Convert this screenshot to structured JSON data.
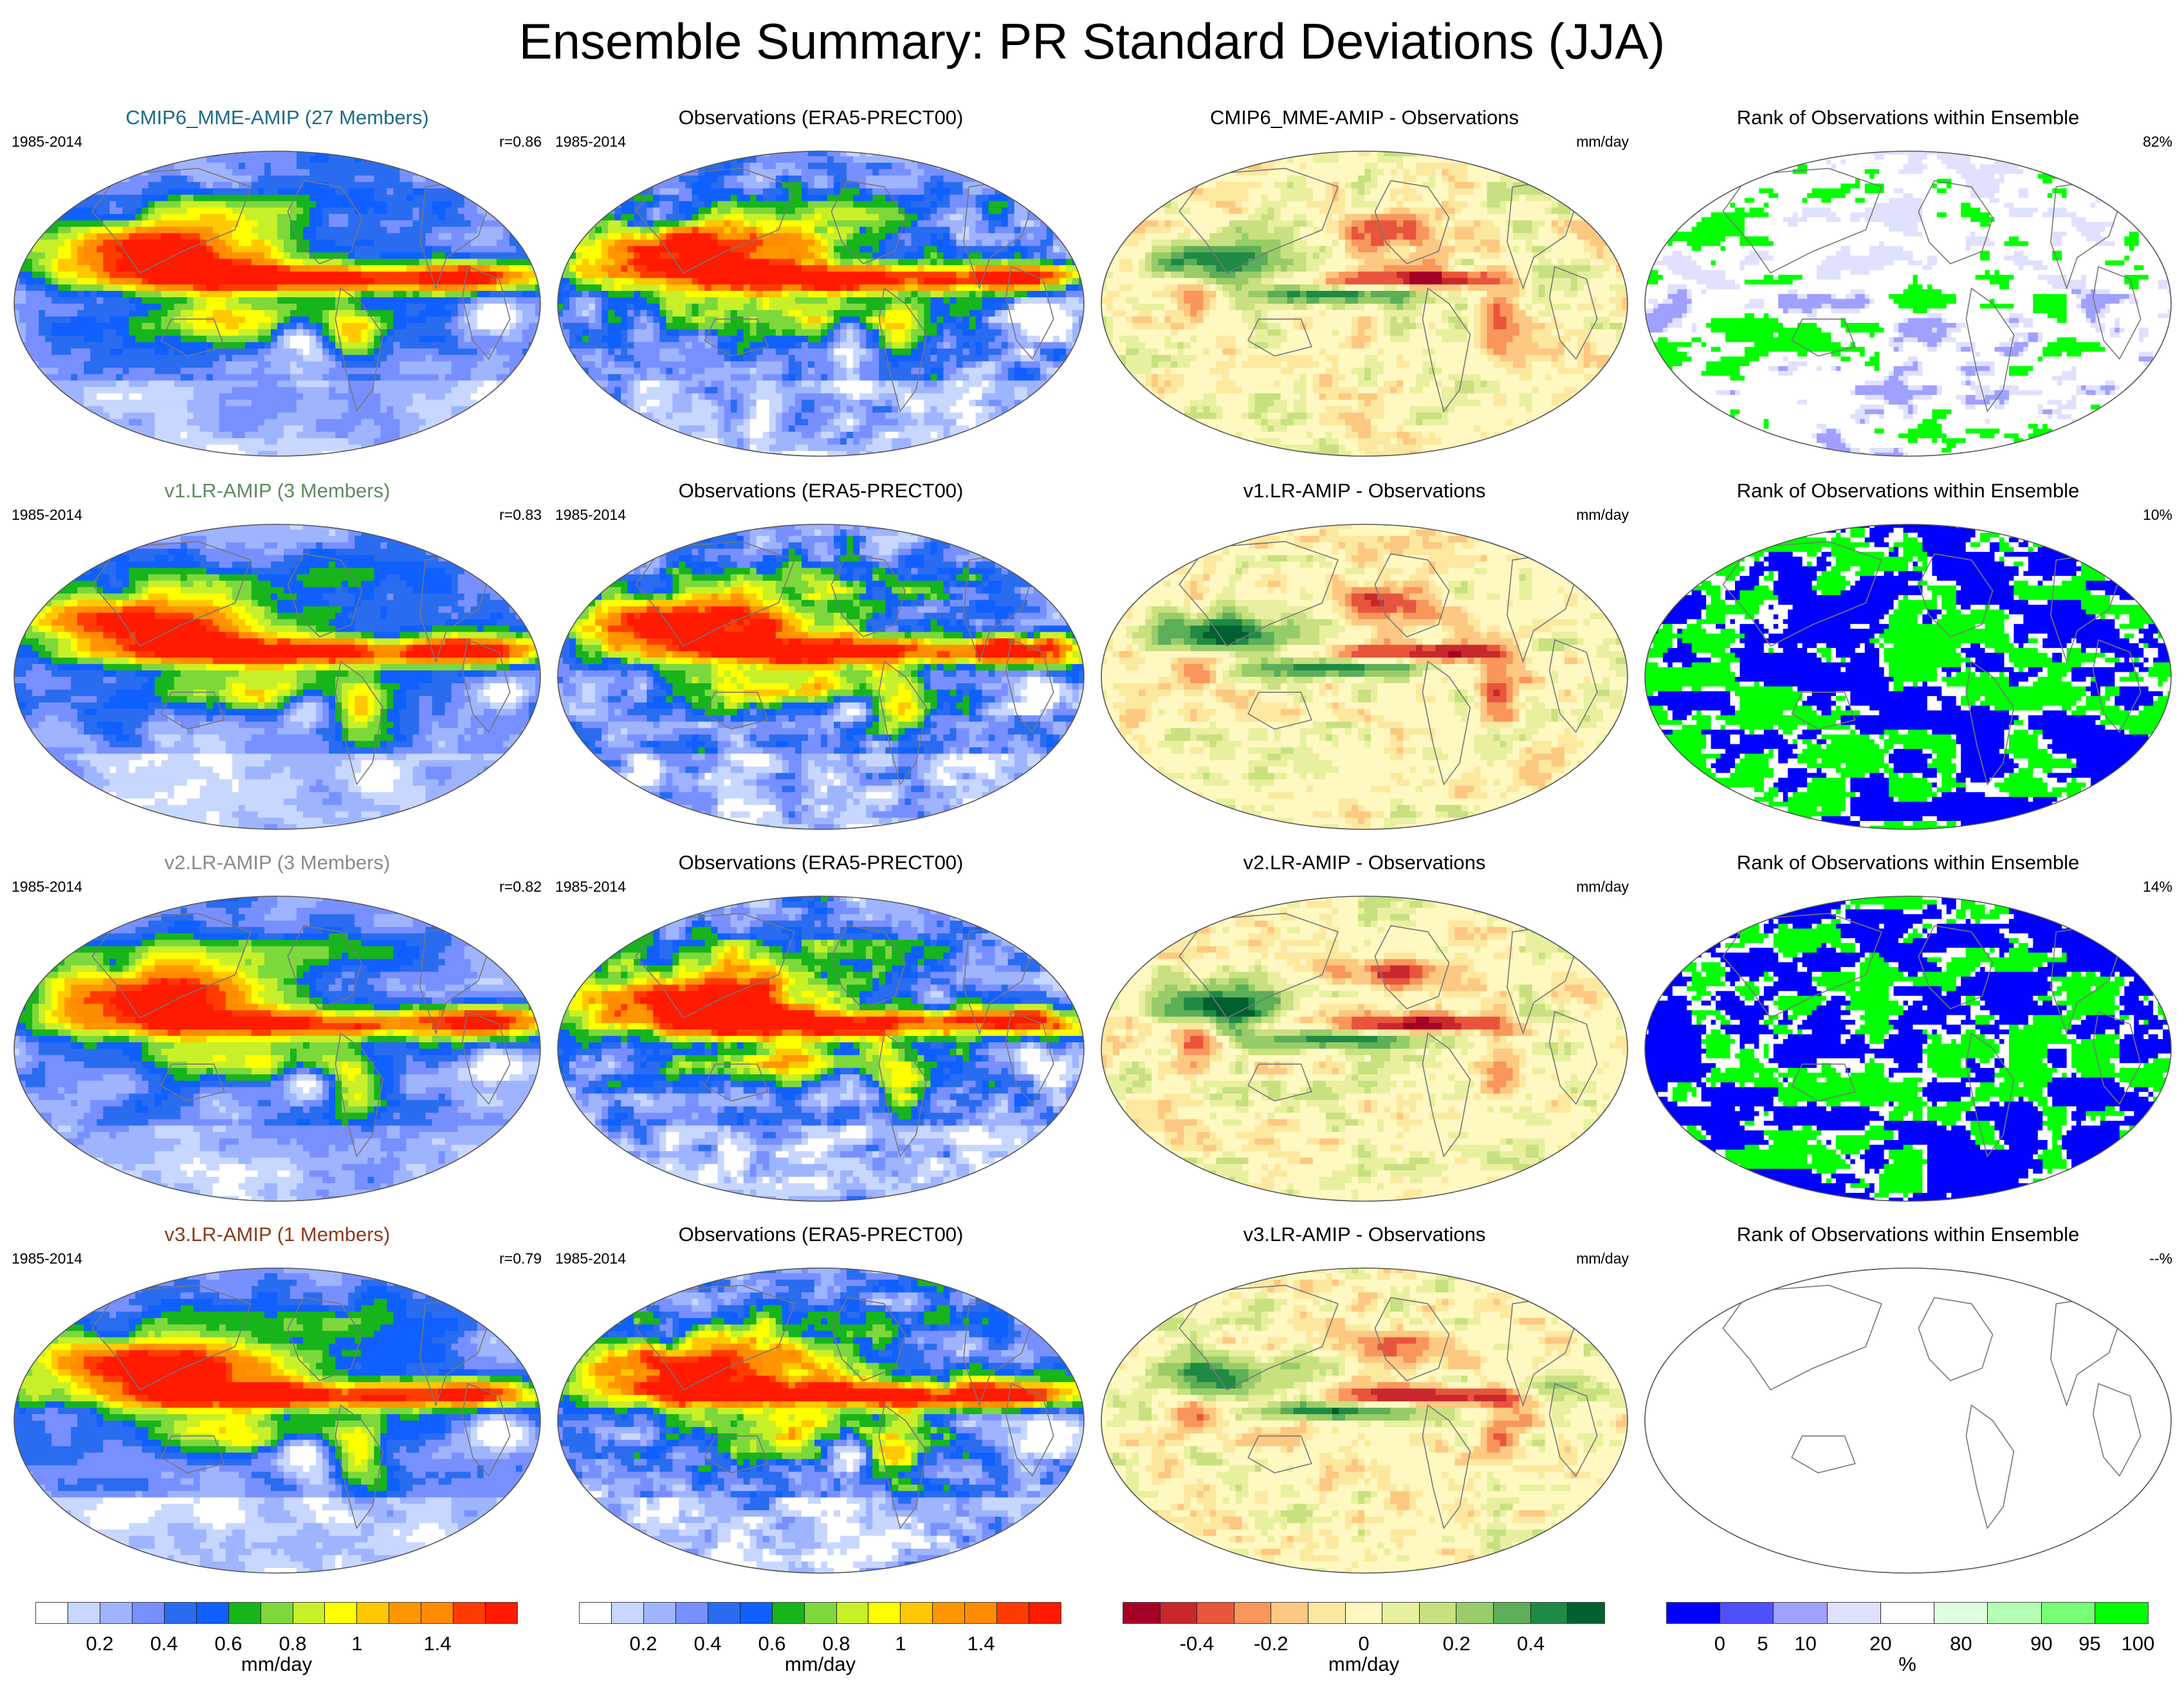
{
  "title": "Ensemble Summary: PR Standard Deviations (JJA)",
  "colors": {
    "cmip6": "#1a6b86",
    "v1": "#5e8b5e",
    "v2": "#8a8a8a",
    "v3": "#8b3a1a"
  },
  "panels": [
    {
      "col": 0,
      "row": 0,
      "kind": "model",
      "title": "CMIP6_MME-AMIP (27 Members)",
      "title_color": "#1a6b86",
      "left": "1985-2014",
      "right": "r=0.86"
    },
    {
      "col": 1,
      "row": 0,
      "kind": "obs",
      "title": "Observations (ERA5-PRECT00)",
      "left": "1985-2014",
      "right": ""
    },
    {
      "col": 2,
      "row": 0,
      "kind": "diff",
      "title": "CMIP6_MME-AMIP - Observations",
      "left": "",
      "right": "mm/day"
    },
    {
      "col": 3,
      "row": 0,
      "kind": "rank",
      "title": "Rank of Observations within Ensemble",
      "left": "",
      "right": "82%"
    },
    {
      "col": 0,
      "row": 1,
      "kind": "model",
      "title": "v1.LR-AMIP (3 Members)",
      "title_color": "#5e8b5e",
      "left": "1985-2014",
      "right": "r=0.83"
    },
    {
      "col": 1,
      "row": 1,
      "kind": "obs",
      "title": "Observations (ERA5-PRECT00)",
      "left": "1985-2014",
      "right": ""
    },
    {
      "col": 2,
      "row": 1,
      "kind": "diff",
      "title": "v1.LR-AMIP - Observations",
      "left": "",
      "right": "mm/day"
    },
    {
      "col": 3,
      "row": 1,
      "kind": "rank",
      "title": "Rank of Observations within Ensemble",
      "left": "",
      "right": "10%"
    },
    {
      "col": 0,
      "row": 2,
      "kind": "model",
      "title": "v2.LR-AMIP (3 Members)",
      "title_color": "#8a8a8a",
      "left": "1985-2014",
      "right": "r=0.82"
    },
    {
      "col": 1,
      "row": 2,
      "kind": "obs",
      "title": "Observations (ERA5-PRECT00)",
      "left": "1985-2014",
      "right": ""
    },
    {
      "col": 2,
      "row": 2,
      "kind": "diff",
      "title": "v2.LR-AMIP - Observations",
      "left": "",
      "right": "mm/day"
    },
    {
      "col": 3,
      "row": 2,
      "kind": "rank",
      "title": "Rank of Observations within Ensemble",
      "left": "",
      "right": "14%"
    },
    {
      "col": 0,
      "row": 3,
      "kind": "model",
      "title": "v3.LR-AMIP (1 Members)",
      "title_color": "#8b3a1a",
      "left": "1985-2014",
      "right": "r=0.79"
    },
    {
      "col": 1,
      "row": 3,
      "kind": "obs",
      "title": "Observations (ERA5-PRECT00)",
      "left": "1985-2014",
      "right": ""
    },
    {
      "col": 2,
      "row": 3,
      "kind": "diff",
      "title": "v3.LR-AMIP - Observations",
      "left": "",
      "right": "mm/day"
    },
    {
      "col": 3,
      "row": 3,
      "kind": "rank",
      "title": "Rank of Observations within Ensemble",
      "left": "",
      "right": "--%"
    }
  ],
  "colorbars": [
    {
      "name": "model-colorbar",
      "colors": [
        "#ffffff",
        "#c8d7ff",
        "#9fb4ff",
        "#7890ff",
        "#2a6cf0",
        "#1060ff",
        "#18b41c",
        "#7dd83c",
        "#c8f028",
        "#ffff00",
        "#ffc800",
        "#ff9600",
        "#ff8c00",
        "#ff3c00",
        "#ff1a00"
      ],
      "ticks": [
        {
          "label": "0.2",
          "at": 2
        },
        {
          "label": "0.4",
          "at": 4
        },
        {
          "label": "0.6",
          "at": 6
        },
        {
          "label": "0.8",
          "at": 8
        },
        {
          "label": "1",
          "at": 10
        },
        {
          "label": "1.4",
          "at": 12.5
        }
      ],
      "unit": "mm/day"
    },
    {
      "name": "obs-colorbar",
      "colors": [
        "#ffffff",
        "#c8d7ff",
        "#9fb4ff",
        "#7890ff",
        "#2a6cf0",
        "#1060ff",
        "#18b41c",
        "#7dd83c",
        "#c8f028",
        "#ffff00",
        "#ffc800",
        "#ff9600",
        "#ff8c00",
        "#ff3c00",
        "#ff1a00"
      ],
      "ticks": [
        {
          "label": "0.2",
          "at": 2
        },
        {
          "label": "0.4",
          "at": 4
        },
        {
          "label": "0.6",
          "at": 6
        },
        {
          "label": "0.8",
          "at": 8
        },
        {
          "label": "1",
          "at": 10
        },
        {
          "label": "1.4",
          "at": 12.5
        }
      ],
      "unit": "mm/day"
    },
    {
      "name": "diff-colorbar",
      "colors": [
        "#a50026",
        "#c8282c",
        "#e8553c",
        "#f8965c",
        "#fcc882",
        "#fde8a0",
        "#fff8c0",
        "#e8f0a0",
        "#c8e080",
        "#98cc68",
        "#5cae58",
        "#1e8a44",
        "#006030"
      ],
      "ticks": [
        {
          "label": "-0.4",
          "at": 2
        },
        {
          "label": "-0.2",
          "at": 4
        },
        {
          "label": "0",
          "at": 6.5
        },
        {
          "label": "0.2",
          "at": 9
        },
        {
          "label": "0.4",
          "at": 11
        }
      ],
      "unit": "mm/day"
    },
    {
      "name": "rank-colorbar",
      "colors": [
        "#0000ff",
        "#5050ff",
        "#a0a0ff",
        "#e0e0ff",
        "#ffffff",
        "#e0ffe0",
        "#b4ffb4",
        "#78ff78",
        "#00ff00"
      ],
      "ticks": [
        {
          "label": "0",
          "at": 1
        },
        {
          "label": "5",
          "at": 1.8
        },
        {
          "label": "10",
          "at": 2.6
        },
        {
          "label": "20",
          "at": 4
        },
        {
          "label": "80",
          "at": 5.5
        },
        {
          "label": "90",
          "at": 7
        },
        {
          "label": "95",
          "at": 7.9
        },
        {
          "label": "100",
          "at": 8.8
        }
      ],
      "unit": "%"
    }
  ]
}
